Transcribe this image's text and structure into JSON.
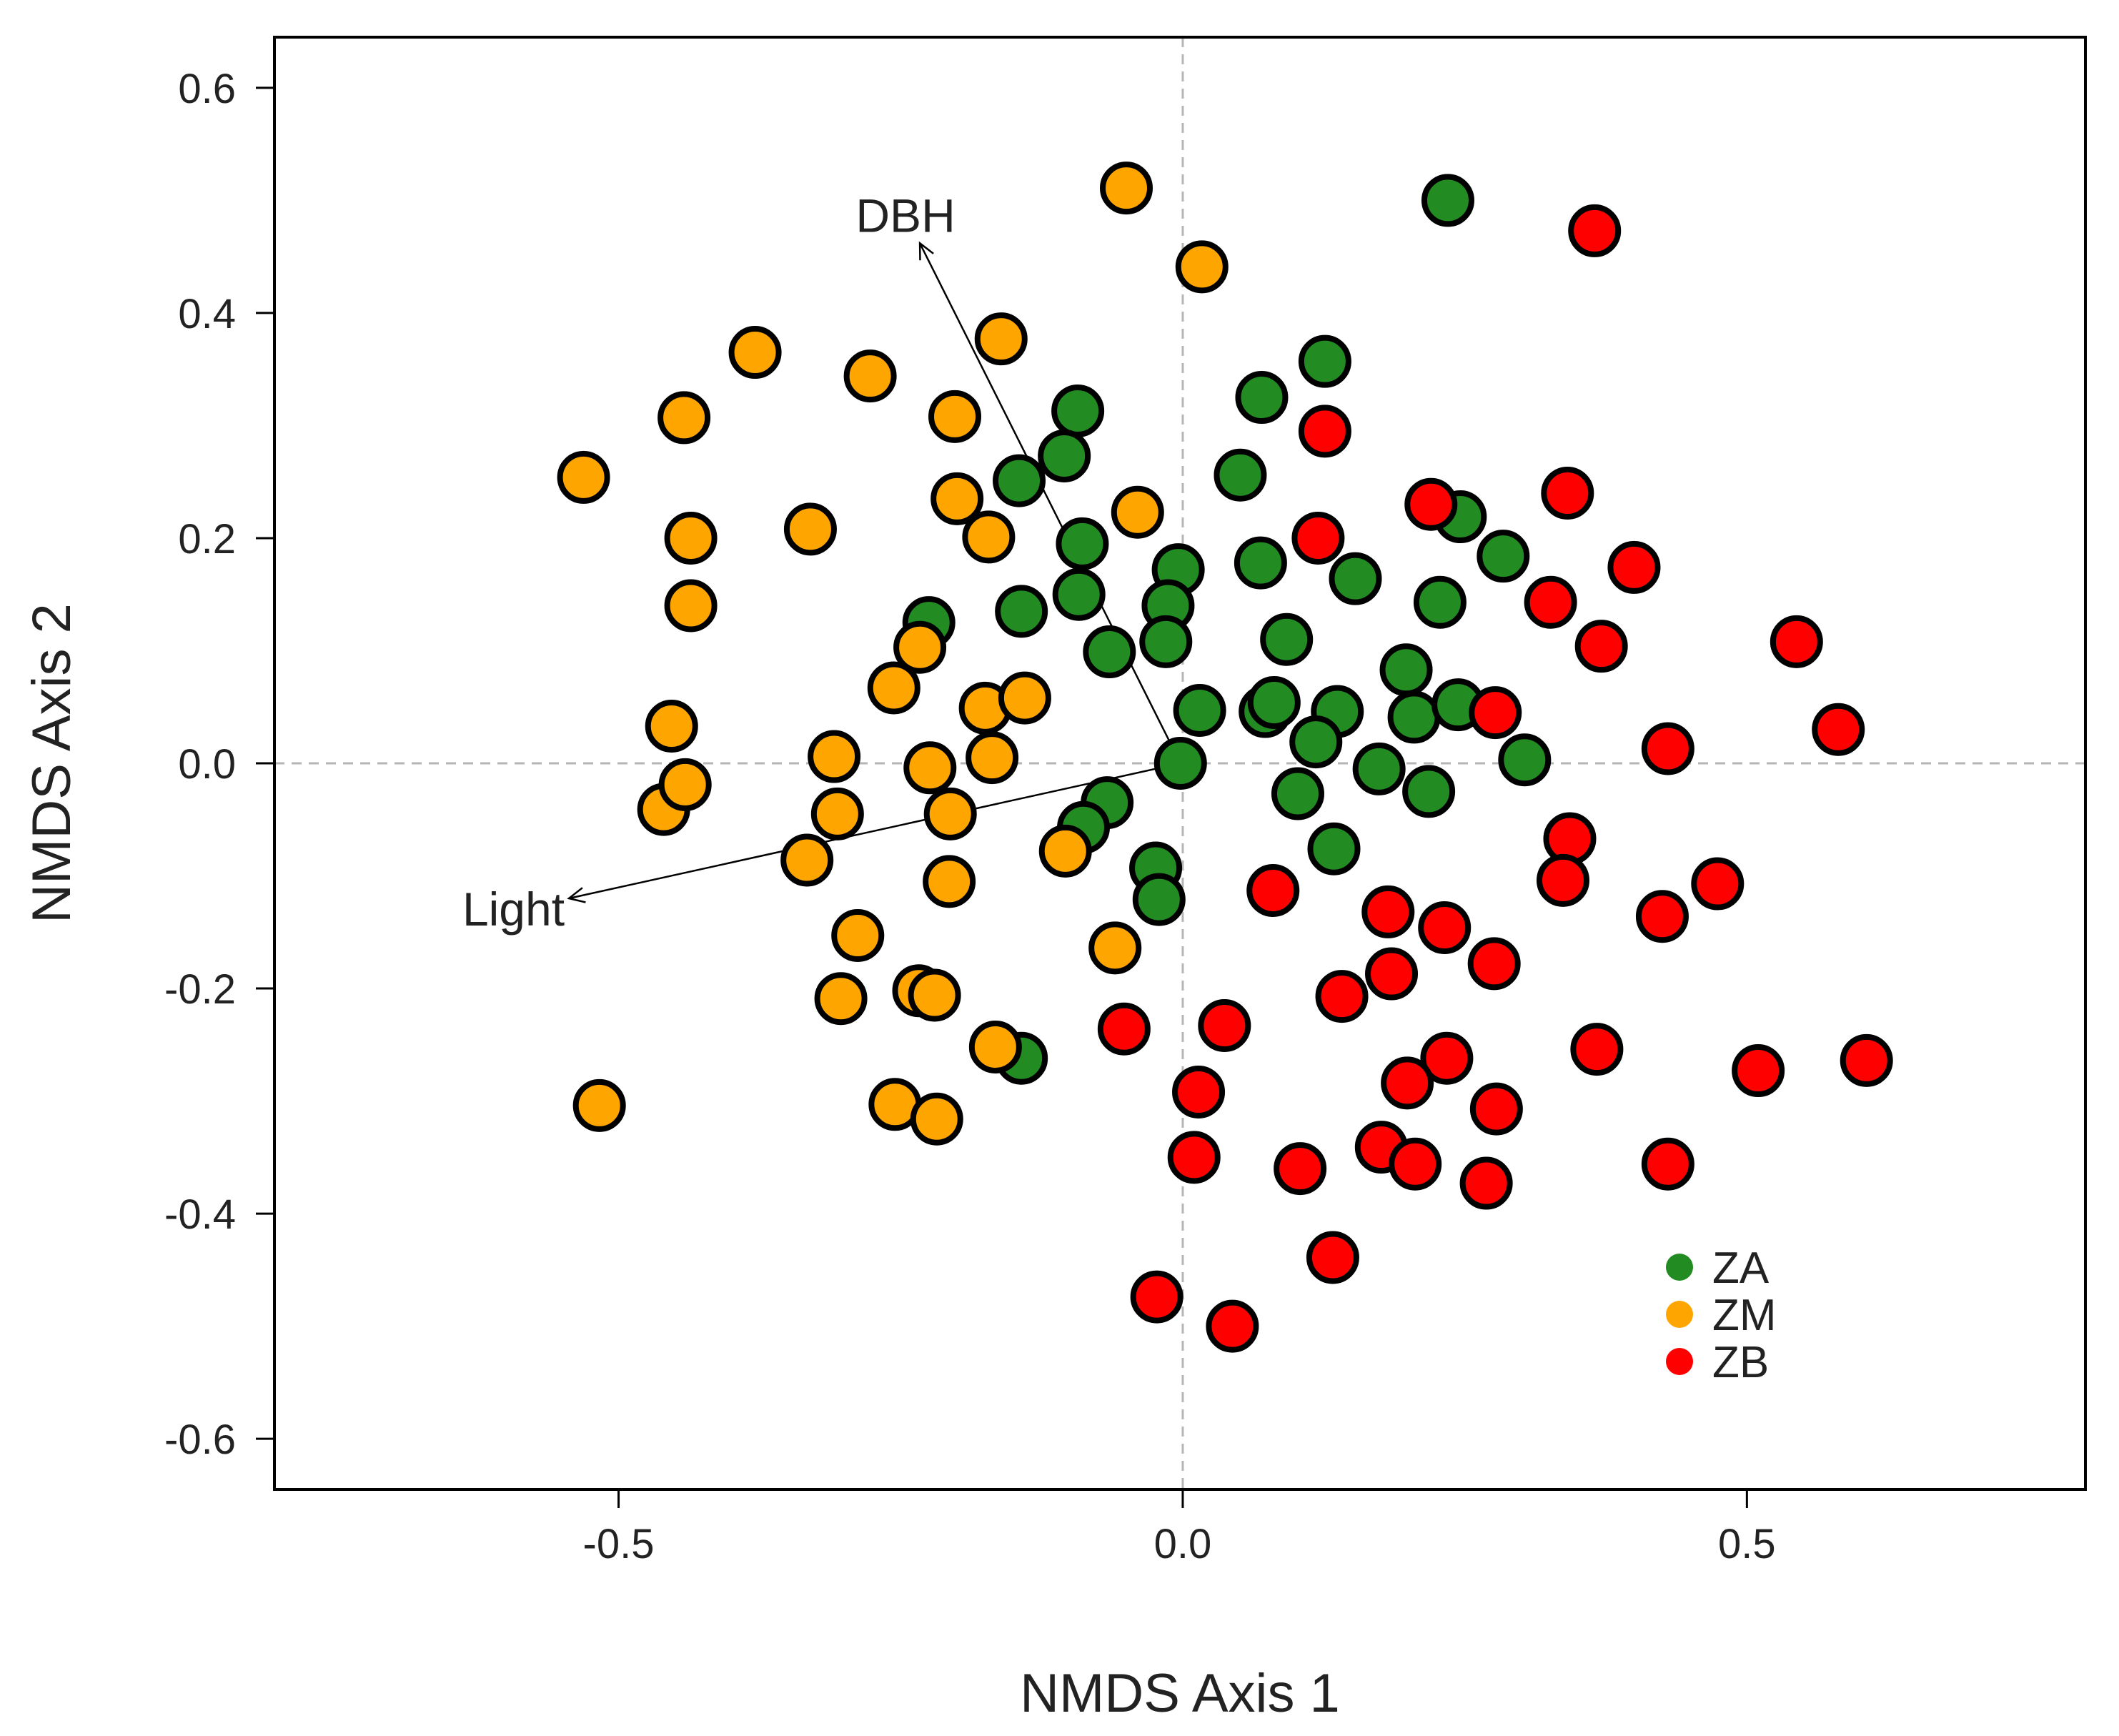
{
  "chart_data": {
    "type": "scatter",
    "xlabel": "NMDS Axis 1",
    "ylabel": "NMDS Axis 2",
    "xlim": [
      -0.805,
      0.8
    ],
    "ylim": [
      -0.645,
      0.645
    ],
    "xticks": [
      -0.5,
      0.0,
      0.5
    ],
    "xtick_labels": [
      "-0.5",
      "0.0",
      "0.5"
    ],
    "yticks": [
      -0.6,
      -0.4,
      -0.2,
      0.0,
      0.2,
      0.4,
      0.6
    ],
    "ytick_labels": [
      "-0.6",
      "-0.4",
      "-0.2",
      "0.0",
      "0.2",
      "0.4",
      "0.6"
    ],
    "reference_lines": {
      "x": 0,
      "y": 0
    },
    "legend_position": "bottom-right",
    "series": [
      {
        "name": "ZA",
        "color": "#228B22",
        "points": [
          [
            0.235,
            0.5
          ],
          [
            0.126,
            0.357
          ],
          [
            0.07,
            0.325
          ],
          [
            -0.093,
            0.313
          ],
          [
            -0.105,
            0.273
          ],
          [
            -0.145,
            0.251
          ],
          [
            0.051,
            0.256
          ],
          [
            -0.089,
            0.195
          ],
          [
            -0.004,
            0.172
          ],
          [
            -0.092,
            0.15
          ],
          [
            -0.143,
            0.135
          ],
          [
            0.069,
            0.178
          ],
          [
            0.153,
            0.164
          ],
          [
            0.246,
            0.219
          ],
          [
            0.284,
            0.184
          ],
          [
            0.228,
            0.143
          ],
          [
            -0.225,
            0.125
          ],
          [
            -0.013,
            0.14
          ],
          [
            -0.065,
            0.099
          ],
          [
            -0.015,
            0.108
          ],
          [
            0.092,
            0.11
          ],
          [
            0.198,
            0.083
          ],
          [
            0.015,
            0.047
          ],
          [
            0.073,
            0.046
          ],
          [
            0.081,
            0.054
          ],
          [
            0.137,
            0.046
          ],
          [
            0.118,
            0.019
          ],
          [
            0.205,
            0.041
          ],
          [
            0.244,
            0.052
          ],
          [
            0.303,
            0.003
          ],
          [
            -0.002,
            0.0
          ],
          [
            0.174,
            -0.005
          ],
          [
            0.218,
            -0.025
          ],
          [
            0.102,
            -0.027
          ],
          [
            -0.067,
            -0.035
          ],
          [
            -0.088,
            -0.057
          ],
          [
            0.134,
            -0.076
          ],
          [
            -0.024,
            -0.093
          ],
          [
            -0.021,
            -0.121
          ],
          [
            -0.143,
            -0.262
          ]
        ]
      },
      {
        "name": "ZM",
        "color": "#FFA500",
        "points": [
          [
            -0.05,
            0.511
          ],
          [
            0.017,
            0.441
          ],
          [
            -0.161,
            0.377
          ],
          [
            -0.379,
            0.365
          ],
          [
            -0.277,
            0.344
          ],
          [
            -0.442,
            0.307
          ],
          [
            -0.202,
            0.308
          ],
          [
            -0.531,
            0.254
          ],
          [
            -0.2,
            0.235
          ],
          [
            -0.04,
            0.223
          ],
          [
            -0.33,
            0.208
          ],
          [
            -0.436,
            0.2
          ],
          [
            -0.172,
            0.201
          ],
          [
            -0.436,
            0.14
          ],
          [
            -0.233,
            0.103
          ],
          [
            -0.256,
            0.067
          ],
          [
            -0.175,
            0.049
          ],
          [
            -0.14,
            0.058
          ],
          [
            -0.453,
            0.033
          ],
          [
            -0.309,
            0.006
          ],
          [
            -0.224,
            -0.004
          ],
          [
            -0.169,
            0.005
          ],
          [
            -0.46,
            -0.041
          ],
          [
            -0.441,
            -0.019
          ],
          [
            -0.306,
            -0.045
          ],
          [
            -0.206,
            -0.045
          ],
          [
            -0.333,
            -0.086
          ],
          [
            -0.104,
            -0.078
          ],
          [
            -0.207,
            -0.105
          ],
          [
            -0.288,
            -0.153
          ],
          [
            -0.06,
            -0.164
          ],
          [
            -0.303,
            -0.209
          ],
          [
            -0.234,
            -0.202
          ],
          [
            -0.22,
            -0.206
          ],
          [
            -0.166,
            -0.252
          ],
          [
            -0.255,
            -0.303
          ],
          [
            -0.218,
            -0.316
          ],
          [
            -0.517,
            -0.304
          ]
        ]
      },
      {
        "name": "ZB",
        "color": "#FF0000",
        "points": [
          [
            0.365,
            0.473
          ],
          [
            0.126,
            0.295
          ],
          [
            0.341,
            0.24
          ],
          [
            0.22,
            0.23
          ],
          [
            0.12,
            0.2
          ],
          [
            0.4,
            0.174
          ],
          [
            0.326,
            0.143
          ],
          [
            0.371,
            0.104
          ],
          [
            0.544,
            0.108
          ],
          [
            0.277,
            0.045
          ],
          [
            0.43,
            0.013
          ],
          [
            0.581,
            0.03
          ],
          [
            0.343,
            -0.067
          ],
          [
            0.337,
            -0.104
          ],
          [
            0.474,
            -0.107
          ],
          [
            0.08,
            -0.113
          ],
          [
            0.182,
            -0.132
          ],
          [
            0.425,
            -0.136
          ],
          [
            0.232,
            -0.146
          ],
          [
            0.276,
            -0.178
          ],
          [
            0.185,
            -0.187
          ],
          [
            0.141,
            -0.207
          ],
          [
            -0.052,
            -0.236
          ],
          [
            0.037,
            -0.233
          ],
          [
            0.367,
            -0.254
          ],
          [
            0.234,
            -0.262
          ],
          [
            0.606,
            -0.264
          ],
          [
            0.51,
            -0.273
          ],
          [
            0.199,
            -0.284
          ],
          [
            0.278,
            -0.307
          ],
          [
            0.014,
            -0.292
          ],
          [
            0.176,
            -0.341
          ],
          [
            0.206,
            -0.356
          ],
          [
            0.01,
            -0.35
          ],
          [
            0.104,
            -0.36
          ],
          [
            0.269,
            -0.373
          ],
          [
            0.43,
            -0.356
          ],
          [
            0.133,
            -0.439
          ],
          [
            -0.023,
            -0.474
          ],
          [
            0.044,
            -0.5
          ]
        ]
      }
    ],
    "arrows": [
      {
        "label": "DBH",
        "from": [
          -0.002,
          0.0
        ],
        "to": [
          -0.233,
          0.462
        ]
      },
      {
        "label": "Light",
        "from": [
          -0.002,
          0.0
        ],
        "to": [
          -0.544,
          -0.12
        ]
      }
    ]
  }
}
